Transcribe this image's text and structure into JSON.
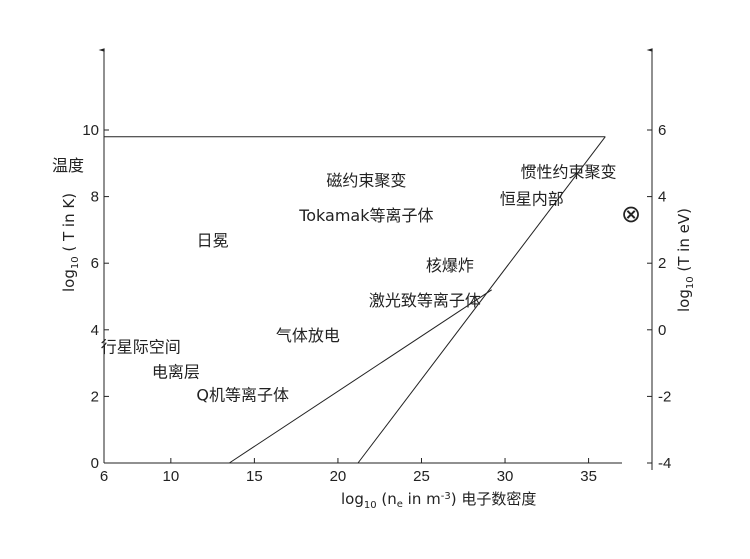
{
  "chart_data": {
    "type": "scatter",
    "title": "",
    "xlabel": {
      "prefix": "log",
      "sub": "10",
      "mid": " (n",
      "sub2": "e",
      "mid2": " in m",
      "sup": "-3",
      "suffix": ") 电子数密度"
    },
    "ylabel_left": {
      "prefix": "log",
      "sub": "10",
      "rest": " ( T in K)"
    },
    "ylabel_right": {
      "prefix": "log",
      "sub": "10",
      "rest": " (T in eV)"
    },
    "y_left_title": "温度",
    "xlim": [
      6,
      37
    ],
    "ylim": [
      0,
      11
    ],
    "x_ticks": [
      6,
      10,
      15,
      20,
      25,
      30,
      35
    ],
    "y_left_ticks": [
      0,
      2,
      4,
      6,
      8,
      10
    ],
    "y_right_ticks": [
      "-4",
      "-2",
      "0",
      "2",
      "4",
      "6"
    ],
    "y_right_offset": -4,
    "symbol": "⊗",
    "regions": [
      {
        "label": "磁约束聚变",
        "x": 21.7,
        "y": 8.5
      },
      {
        "label": "惯性约束聚变",
        "x": 33.8,
        "y": 8.75
      },
      {
        "label": "恒星内部",
        "x": 31.6,
        "y": 7.95
      },
      {
        "label": "Tokamak等离子体",
        "x": 21.7,
        "y": 7.45
      },
      {
        "label": "日冕",
        "x": 12.5,
        "y": 6.7
      },
      {
        "label": "核爆炸",
        "x": 26.7,
        "y": 5.95
      },
      {
        "label": "激光致等离子体",
        "x": 25.2,
        "y": 4.9
      },
      {
        "label": "气体放电",
        "x": 18.2,
        "y": 3.85
      },
      {
        "label": "行星际空间",
        "x": 8.2,
        "y": 3.5
      },
      {
        "label": "电离层",
        "x": 10.3,
        "y": 2.75
      },
      {
        "label": "Q机等离子体",
        "x": 14.3,
        "y": 2.05
      }
    ],
    "lines": [
      {
        "name": "",
        "points": [
          [
            6,
            9.8
          ],
          [
            36,
            9.8
          ]
        ]
      },
      {
        "name": "",
        "points": [
          [
            13.5,
            0
          ],
          [
            29.2,
            5.2
          ]
        ]
      },
      {
        "name": "",
        "points": [
          [
            21.2,
            0
          ],
          [
            36,
            9.8
          ]
        ]
      }
    ]
  }
}
